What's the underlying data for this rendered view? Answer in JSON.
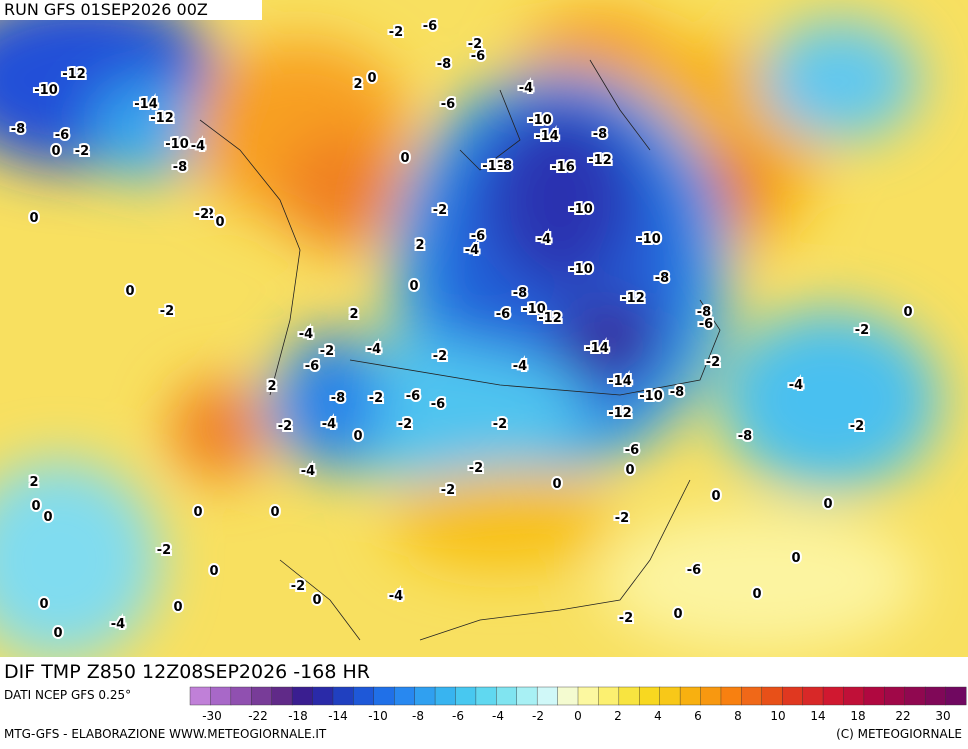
{
  "header": {
    "run": "RUN GFS 01SEP2026 00Z"
  },
  "map": {
    "title": "DIF TMP Z850 12Z08SEP2026 -168 HR",
    "contour_labels": [
      "-6",
      "-2",
      "-2",
      "-6",
      "-8",
      "0",
      "-4",
      "2",
      "-2",
      "-12",
      "-10",
      "-14",
      "-12",
      "-8",
      "-6",
      "-2",
      "0",
      "-10",
      "-4",
      "-8",
      "0",
      "-6",
      "-10",
      "-14",
      "-8",
      "-12",
      "-16",
      "-12",
      "-8",
      "-10",
      "-2",
      "0",
      "-4",
      "-2",
      "0",
      "-6",
      "-4",
      "-10",
      "-10",
      "-8",
      "2",
      "-8",
      "0",
      "-12",
      "-8",
      "0",
      "-2",
      "-10",
      "-6",
      "-12",
      "-4",
      "-6",
      "2",
      "-4",
      "-2",
      "-14",
      "-2",
      "-4",
      "-6",
      "-2",
      "-2",
      "-14",
      "0",
      "2",
      "-6",
      "-8",
      "-2",
      "-6",
      "-10",
      "-8",
      "-4",
      "-12",
      "-4",
      "-2",
      "-2",
      "-8",
      "0",
      "-2",
      "-6",
      "-2",
      "-2",
      "-4",
      "0",
      "-2",
      "0",
      "2",
      "0",
      "-2",
      "0",
      "0",
      "0",
      "-2",
      "0",
      "0",
      "0",
      "-2",
      "0",
      "-6",
      "0",
      "0",
      "0",
      "-4",
      "0",
      "-2",
      "-4",
      "0",
      "0"
    ]
  },
  "colorbar": {
    "source": "DATI NCEP GFS 0.25°",
    "colors": [
      "#c080d8",
      "#a868c8",
      "#9050b0",
      "#783c98",
      "#602a88",
      "#3a1e90",
      "#2a2aa8",
      "#2040c0",
      "#1e58d8",
      "#2070e8",
      "#2888f0",
      "#30a0f0",
      "#38b4f0",
      "#48c8f0",
      "#60d8f0",
      "#80e4f0",
      "#a8f0f4",
      "#d0f8f8",
      "#f4fbd0",
      "#fcf8a0",
      "#fcf070",
      "#f8e440",
      "#f8d820",
      "#f8c818",
      "#f8b010",
      "#f89810",
      "#f88010",
      "#f06818",
      "#e85018",
      "#e03820",
      "#d82828",
      "#d01830",
      "#c01038",
      "#b00840",
      "#a00848",
      "#900850",
      "#800858",
      "#700860"
    ],
    "labels": [
      "-30",
      "-22",
      "-18",
      "-14",
      "-10",
      "-8",
      "-6",
      "-4",
      "-2",
      "0",
      "2",
      "4",
      "6",
      "8",
      "10",
      "14",
      "18",
      "22",
      "30"
    ]
  },
  "footer": {
    "left": "MTG-GFS - ELABORAZIONE WWW.METEOGIORNALE.IT",
    "right": "(C) METEOGIORNALE"
  }
}
